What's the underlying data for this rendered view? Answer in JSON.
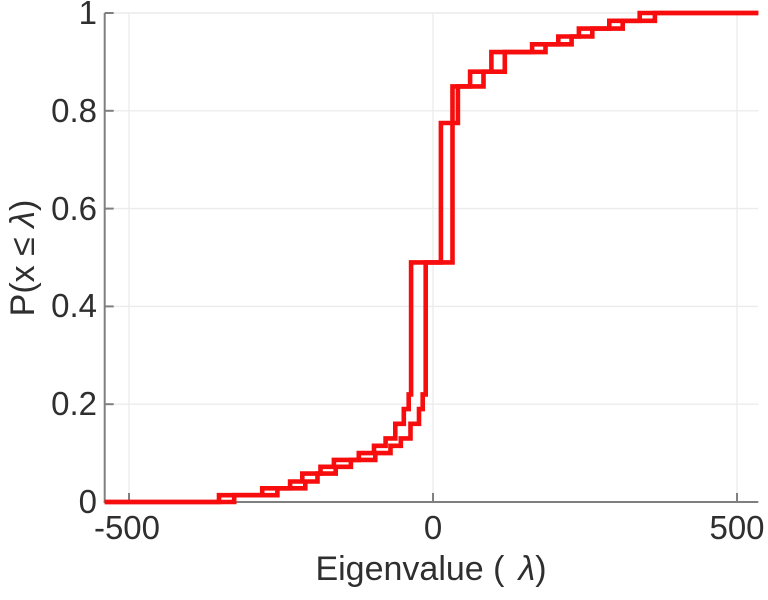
{
  "figure": {
    "background": "#ffffff"
  },
  "axes": {
    "x_label": {
      "prefix": "Eigenvalue (",
      "lambda": "λ",
      "suffix": ")"
    },
    "y_label": {
      "prefix": "P(x ≤ ",
      "lambda": "λ",
      "suffix": ")"
    },
    "x_ticks": [
      "-500",
      "0",
      "500"
    ],
    "y_ticks": [
      "0",
      "0.2",
      "0.4",
      "0.6",
      "0.8",
      "1"
    ]
  },
  "colors": {
    "curve": "#f70d0d",
    "grid": "#ececec",
    "spine": "#7f7f7f",
    "text": "#2f2f2f",
    "background": "#ffffff"
  },
  "chart_data": {
    "type": "line",
    "subtype": "empirical-cdf-stairs",
    "title": "",
    "xlabel": "Eigenvalue ( λ)",
    "ylabel": "P(x ≤ λ)",
    "xlim": [
      -540,
      535
    ],
    "ylim": [
      0,
      1
    ],
    "x_tick_values": [
      -500,
      0,
      500
    ],
    "y_tick_values": [
      0,
      0.2,
      0.4,
      0.6,
      0.8,
      1
    ],
    "grid": true,
    "legend": "none",
    "line_width": 4.6,
    "series": [
      {
        "name": "eigenvalue-ecdf-1",
        "color": "#f70d0d",
        "start": [
          -540,
          0
        ],
        "end_x": 535,
        "steps": [
          [
            -352,
            0.014
          ],
          [
            -281,
            0.028
          ],
          [
            -235,
            0.042
          ],
          [
            -215,
            0.058
          ],
          [
            -185,
            0.072
          ],
          [
            -163,
            0.086
          ],
          [
            -122,
            0.1
          ],
          [
            -97,
            0.115
          ],
          [
            -78,
            0.13
          ],
          [
            -62,
            0.16
          ],
          [
            -48,
            0.19
          ],
          [
            -40,
            0.22
          ],
          [
            -36,
            0.49
          ],
          [
            13,
            0.775
          ],
          [
            41,
            0.85
          ],
          [
            61,
            0.88
          ],
          [
            96,
            0.92
          ],
          [
            163,
            0.936
          ],
          [
            206,
            0.952
          ],
          [
            240,
            0.968
          ],
          [
            290,
            0.984
          ],
          [
            340,
            1.0
          ]
        ]
      },
      {
        "name": "eigenvalue-ecdf-2",
        "color": "#f70d0d",
        "start": [
          -540,
          0
        ],
        "end_x": 535,
        "steps": [
          [
            -327,
            0.014
          ],
          [
            -256,
            0.028
          ],
          [
            -210,
            0.042
          ],
          [
            -190,
            0.058
          ],
          [
            -160,
            0.072
          ],
          [
            -135,
            0.086
          ],
          [
            -95,
            0.1
          ],
          [
            -70,
            0.115
          ],
          [
            -53,
            0.13
          ],
          [
            -37,
            0.16
          ],
          [
            -23,
            0.19
          ],
          [
            -17,
            0.22
          ],
          [
            -12,
            0.49
          ],
          [
            32,
            0.85
          ],
          [
            83,
            0.88
          ],
          [
            118,
            0.92
          ],
          [
            185,
            0.936
          ],
          [
            228,
            0.952
          ],
          [
            262,
            0.968
          ],
          [
            312,
            0.984
          ],
          [
            365,
            1.0
          ]
        ]
      }
    ]
  }
}
